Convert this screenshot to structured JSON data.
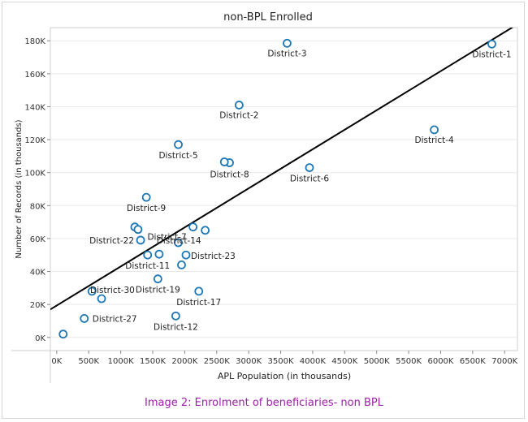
{
  "chart_data": {
    "type": "scatter",
    "title": "non-BPL Enrolled",
    "xlabel": "APL Population (in thousands)",
    "ylabel": "Number of Records (in thousands)",
    "xlim": [
      -100000,
      7200000
    ],
    "ylim": [
      -8000,
      188000
    ],
    "xticks": [
      0,
      500000,
      1000000,
      1500000,
      2000000,
      2500000,
      3000000,
      3500000,
      4000000,
      4500000,
      5000000,
      5500000,
      6000000,
      6500000,
      7000000
    ],
    "xtick_labels": [
      "0K",
      "500K",
      "1000K",
      "1500K",
      "2000K",
      "2500K",
      "3000K",
      "3500K",
      "4000K",
      "4500K",
      "5000K",
      "5500K",
      "6000K",
      "6500K",
      "7000K"
    ],
    "yticks": [
      0,
      20000,
      40000,
      60000,
      80000,
      100000,
      120000,
      140000,
      160000,
      180000
    ],
    "ytick_labels": [
      "0K",
      "20K",
      "40K",
      "60K",
      "80K",
      "100K",
      "120K",
      "140K",
      "160K",
      "180K"
    ],
    "grid": true,
    "marker_color": "#1f77b4",
    "trendline": {
      "x": [
        -100000,
        7200000
      ],
      "y": [
        17000,
        190000
      ],
      "color": "#000000"
    },
    "points": [
      {
        "x": 6800000,
        "y": 178000,
        "label": "District-1"
      },
      {
        "x": 2850000,
        "y": 141000,
        "label": "District-2"
      },
      {
        "x": 3600000,
        "y": 178500,
        "label": "District-3"
      },
      {
        "x": 5900000,
        "y": 126000,
        "label": "District-4"
      },
      {
        "x": 1900000,
        "y": 117000,
        "label": "District-5"
      },
      {
        "x": 3950000,
        "y": 103000,
        "label": "District-6"
      },
      {
        "x": 2130000,
        "y": 67000,
        "label": "District-7"
      },
      {
        "x": 2700000,
        "y": 106000,
        "label": "District-8"
      },
      {
        "x": 1400000,
        "y": 85000,
        "label": "District-9"
      },
      {
        "x": 1420000,
        "y": 50000,
        "label": "District-11"
      },
      {
        "x": 1860000,
        "y": 13000,
        "label": "District-12"
      },
      {
        "x": 2320000,
        "y": 65000,
        "label": "District-14"
      },
      {
        "x": 2220000,
        "y": 28000,
        "label": "District-17"
      },
      {
        "x": 1580000,
        "y": 35500,
        "label": "District-19"
      },
      {
        "x": 1310000,
        "y": 59000,
        "label": "District-22"
      },
      {
        "x": 2020000,
        "y": 50000,
        "label": "District-23"
      },
      {
        "x": 430000,
        "y": 11500,
        "label": "District-27"
      },
      {
        "x": 700000,
        "y": 23500,
        "label": "District-30"
      },
      {
        "x": 100000,
        "y": 2000,
        "label": ""
      },
      {
        "x": 1220000,
        "y": 67000,
        "label": ""
      },
      {
        "x": 1270000,
        "y": 65500,
        "label": ""
      },
      {
        "x": 1600000,
        "y": 50500,
        "label": ""
      },
      {
        "x": 1900000,
        "y": 57500,
        "label": ""
      },
      {
        "x": 1950000,
        "y": 44000,
        "label": ""
      },
      {
        "x": 2620000,
        "y": 106500,
        "label": ""
      },
      {
        "x": 550000,
        "y": 28000,
        "label": ""
      }
    ]
  },
  "caption": "Image 2: Enrolment of beneficiaries- non BPL"
}
